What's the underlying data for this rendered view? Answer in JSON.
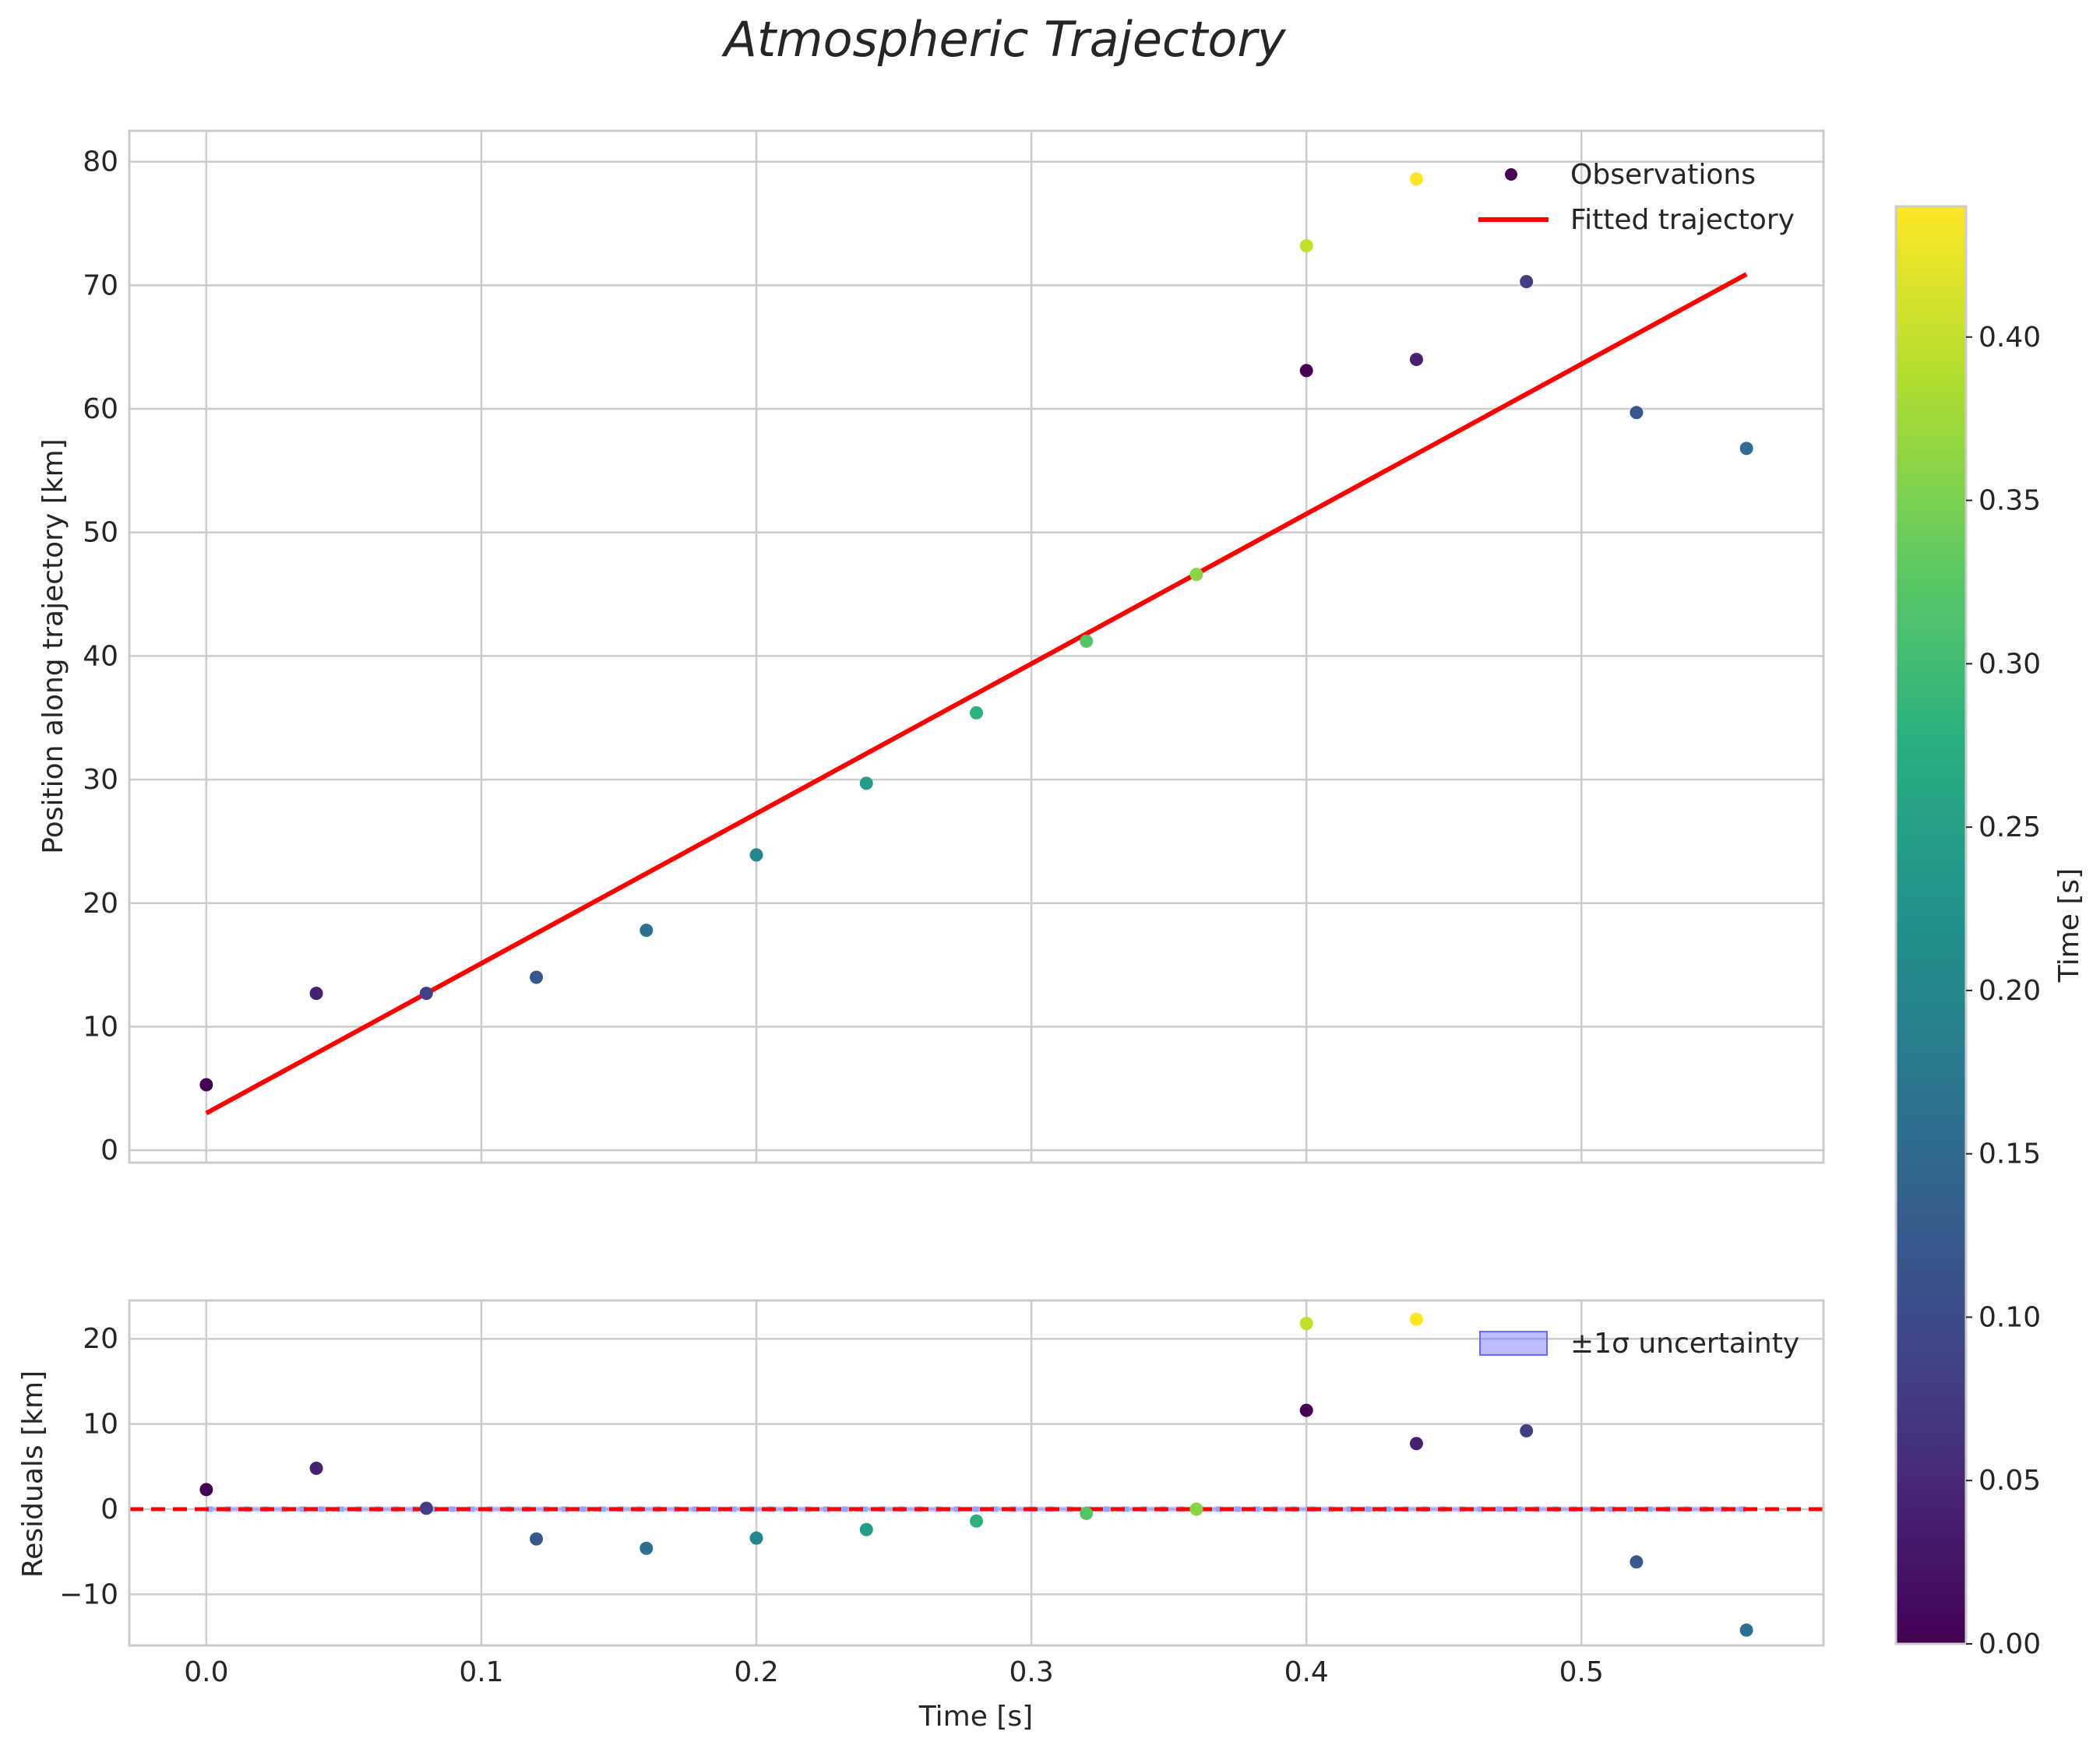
{
  "chart_data": [
    {
      "type": "scatter",
      "panel": "main",
      "title": "Atmospheric Trajectory",
      "xlabel": "",
      "ylabel": "Position along trajectory [km]",
      "xlim": [
        -0.028,
        0.588
      ],
      "ylim": [
        -1,
        82.5
      ],
      "xticks": [
        0.0,
        0.1,
        0.2,
        0.3,
        0.4,
        0.5
      ],
      "xtick_labels": [
        "0.0",
        "0.1",
        "0.2",
        "0.3",
        "0.4",
        "0.5"
      ],
      "yticks": [
        0,
        10,
        20,
        30,
        40,
        50,
        60,
        70,
        80
      ],
      "ytick_labels": [
        "0",
        "10",
        "20",
        "30",
        "40",
        "50",
        "60",
        "70",
        "80"
      ],
      "grid": true,
      "legend": {
        "position": "top-right",
        "entries": [
          "Observations",
          "Fitted trajectory"
        ]
      },
      "x": [
        0.0,
        0.04,
        0.08,
        0.12,
        0.16,
        0.2,
        0.24,
        0.28,
        0.32,
        0.36,
        0.4,
        0.4,
        0.44,
        0.44,
        0.48,
        0.52,
        0.56
      ],
      "y": [
        5.3,
        12.7,
        12.7,
        14.0,
        17.8,
        23.9,
        29.7,
        35.4,
        41.2,
        46.6,
        73.2,
        63.1,
        78.6,
        64.0,
        70.3,
        59.7,
        56.8
      ],
      "c": [
        0.0,
        0.04,
        0.08,
        0.12,
        0.16,
        0.2,
        0.24,
        0.28,
        0.32,
        0.36,
        0.4,
        0.0,
        0.44,
        0.04,
        0.08,
        0.12,
        0.16
      ],
      "fit_line": {
        "name": "Fitted trajectory",
        "x": [
          0.0,
          0.56
        ],
        "y": [
          3.0,
          70.9
        ],
        "color": "#ff0000"
      }
    },
    {
      "type": "scatter",
      "panel": "residuals",
      "xlabel": "Time [s]",
      "ylabel": "Residuals [km]",
      "xlim": [
        -0.028,
        0.588
      ],
      "ylim": [
        -16,
        24.5
      ],
      "xticks": [
        0.0,
        0.1,
        0.2,
        0.3,
        0.4,
        0.5
      ],
      "xtick_labels": [
        "0.0",
        "0.1",
        "0.2",
        "0.3",
        "0.4",
        "0.5"
      ],
      "yticks": [
        -10,
        0,
        10,
        20
      ],
      "ytick_labels": [
        "−10",
        "0",
        "10",
        "20"
      ],
      "grid": true,
      "legend": {
        "position": "top-right",
        "entries": [
          "±1σ uncertainty"
        ]
      },
      "x": [
        0.0,
        0.04,
        0.08,
        0.12,
        0.16,
        0.2,
        0.24,
        0.28,
        0.32,
        0.36,
        0.4,
        0.4,
        0.44,
        0.44,
        0.48,
        0.52,
        0.56
      ],
      "y": [
        2.3,
        4.8,
        0.1,
        -3.5,
        -4.6,
        -3.4,
        -2.4,
        -1.4,
        -0.5,
        0.0,
        21.8,
        11.6,
        22.3,
        7.7,
        9.2,
        -6.2,
        -14.2
      ],
      "c": [
        0.0,
        0.04,
        0.08,
        0.12,
        0.16,
        0.2,
        0.24,
        0.28,
        0.32,
        0.36,
        0.4,
        0.0,
        0.44,
        0.04,
        0.08,
        0.12,
        0.16
      ],
      "zero_line": {
        "y": 0,
        "color": "#ff0000",
        "style": "dashed"
      },
      "uncertainty_band": {
        "name": "±1σ uncertainty",
        "x": [
          0.0,
          0.56
        ],
        "lower": -0.3,
        "upper": 0.3,
        "color": "#6b6bff"
      }
    },
    {
      "type": "colorbar",
      "label": "Time [s]",
      "colormap": "viridis",
      "range": [
        0.0,
        0.44
      ],
      "ticks": [
        0.0,
        0.05,
        0.1,
        0.15,
        0.2,
        0.25,
        0.3,
        0.35,
        0.4
      ],
      "tick_labels": [
        "0.00",
        "0.05",
        "0.10",
        "0.15",
        "0.20",
        "0.25",
        "0.30",
        "0.35",
        "0.40"
      ]
    }
  ]
}
